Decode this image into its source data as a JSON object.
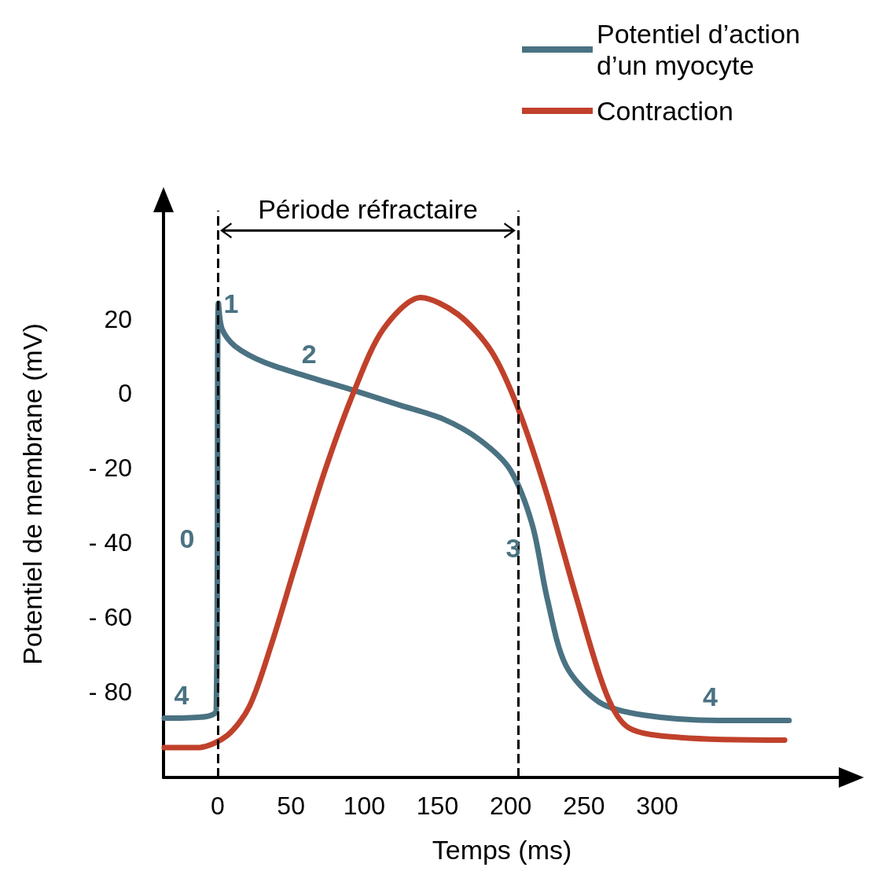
{
  "chart_data": {
    "type": "line",
    "xlabel": "Temps (ms)",
    "ylabel": "Potentiel de membrane (mV)",
    "xlim": [
      -37,
      425
    ],
    "ylim": [
      -103,
      49
    ],
    "xticks": [
      0,
      50,
      100,
      150,
      200,
      250,
      300
    ],
    "yticks": [
      {
        "value": 20,
        "label": "20"
      },
      {
        "value": 0,
        "label": "0"
      },
      {
        "value": -20,
        "label": "- 20"
      },
      {
        "value": -40,
        "label": "- 40"
      },
      {
        "value": -60,
        "label": "- 60"
      },
      {
        "value": -80,
        "label": "- 80"
      }
    ],
    "grid": false,
    "legend": "top right",
    "marker": "none",
    "line_style": "solid",
    "series": [
      {
        "name": "Potentiel d’action d’un myocyte",
        "color": "#4a7282",
        "x": [
          -36.5,
          -8.6,
          -1,
          0.5,
          3,
          11.7,
          32,
          62.4,
          92.9,
          123,
          154,
          179,
          199.5,
          214.7,
          224.9,
          237.6,
          260.4,
          291,
          341.6,
          390
        ],
        "values": [
          -87.1,
          -86.7,
          -85.1,
          24.2,
          17.2,
          12.7,
          8.3,
          4.4,
          0.8,
          -3,
          -6.9,
          -12.5,
          -20.4,
          -35.2,
          -55,
          -72.9,
          -82.8,
          -86.3,
          -87.7,
          -87.7
        ]
      },
      {
        "name": "Contraction",
        "color": "#c0412b",
        "x": [
          -36.5,
          -13.7,
          6.6,
          21.8,
          37,
          52.3,
          72.6,
          92.9,
          113,
          138.6,
          164,
          186.8,
          204.6,
          224.9,
          245,
          265.5,
          280.7,
          316,
          387
        ],
        "values": [
          -95,
          -95,
          -91.7,
          -83.8,
          -66.9,
          -47.1,
          -21.4,
          0.4,
          17.2,
          25.7,
          21.2,
          11.3,
          -3.6,
          -27.3,
          -55,
          -80.8,
          -89.7,
          -92.3,
          -93
        ]
      }
    ],
    "ref_lines": [
      {
        "axis": "x",
        "value": 0,
        "color": "#000000",
        "line_style": "dashed"
      },
      {
        "axis": "x",
        "value": 205,
        "color": "#000000",
        "line_style": "dashed"
      }
    ],
    "annotations": [
      "Période réfractaire",
      {
        "text": "1",
        "x": 0.5,
        "y": 24.2
      },
      {
        "text": "2",
        "x": 62.4,
        "y": 4.4
      },
      {
        "text": "3",
        "x": 214.7,
        "y": -35.2
      },
      {
        "text": "0",
        "x": 0.5,
        "y": -39
      },
      {
        "text": "4",
        "x": -8.6,
        "y": -86.7
      },
      {
        "text": "4",
        "x": 341.6,
        "y": -87.7
      }
    ]
  }
}
